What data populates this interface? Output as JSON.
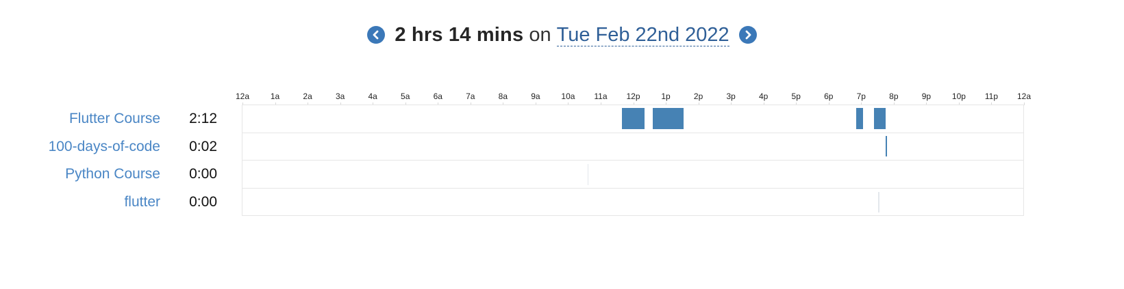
{
  "header": {
    "duration": "2 hrs 14 mins",
    "on": "on",
    "date": "Tue Feb 22nd 2022"
  },
  "axis": {
    "ticks": [
      "12a",
      "1a",
      "2a",
      "3a",
      "4a",
      "5a",
      "6a",
      "7a",
      "8a",
      "9a",
      "10a",
      "11a",
      "12p",
      "1p",
      "2p",
      "3p",
      "4p",
      "5p",
      "6p",
      "7p",
      "8p",
      "9p",
      "10p",
      "11p",
      "12a"
    ]
  },
  "colors": {
    "accent": "#4682b4",
    "link": "#4a86c5",
    "nav": "#3b78b8"
  },
  "rows": [
    {
      "label": "Flutter Course",
      "time": "2:12",
      "segments": [
        {
          "start": 11.65,
          "end": 12.35
        },
        {
          "start": 12.6,
          "end": 13.55
        },
        {
          "start": 18.85,
          "end": 19.05
        },
        {
          "start": 19.4,
          "end": 19.75
        }
      ]
    },
    {
      "label": "100-days-of-code",
      "time": "0:02",
      "segments": [
        {
          "start": 19.75,
          "end": 19.79
        }
      ]
    },
    {
      "label": "Python Course",
      "time": "0:00",
      "segments": [
        {
          "start": 10.6,
          "end": 10.62,
          "faint": true
        }
      ]
    },
    {
      "label": "flutter",
      "time": "0:00",
      "segments": [
        {
          "start": 19.53,
          "end": 19.55,
          "faint": true
        }
      ]
    }
  ]
}
